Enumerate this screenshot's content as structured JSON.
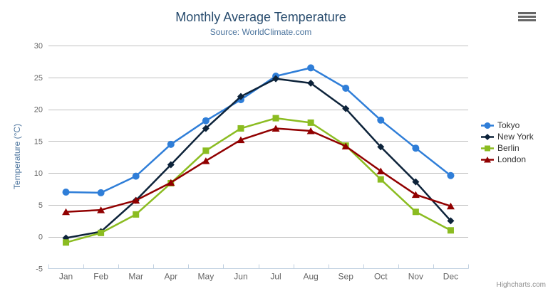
{
  "chart_data": {
    "type": "line",
    "title": "Monthly Average Temperature",
    "subtitle": "Source: WorldClimate.com",
    "xlabel": "",
    "ylabel": "Temperature (°C)",
    "categories": [
      "Jan",
      "Feb",
      "Mar",
      "Apr",
      "May",
      "Jun",
      "Jul",
      "Aug",
      "Sep",
      "Oct",
      "Nov",
      "Dec"
    ],
    "series": [
      {
        "name": "Tokyo",
        "color": "#2f7ed8",
        "marker": "circle",
        "values": [
          7.0,
          6.9,
          9.5,
          14.5,
          18.2,
          21.5,
          25.2,
          26.5,
          23.3,
          18.3,
          13.9,
          9.6
        ]
      },
      {
        "name": "New York",
        "color": "#0d233a",
        "marker": "diamond",
        "values": [
          -0.2,
          0.8,
          5.7,
          11.3,
          17.0,
          22.0,
          24.8,
          24.1,
          20.1,
          14.1,
          8.6,
          2.5
        ]
      },
      {
        "name": "Berlin",
        "color": "#8bbc21",
        "marker": "square",
        "values": [
          -0.9,
          0.6,
          3.5,
          8.4,
          13.5,
          17.0,
          18.6,
          17.9,
          14.3,
          9.0,
          3.9,
          1.0
        ]
      },
      {
        "name": "London",
        "color": "#910000",
        "marker": "triangle",
        "values": [
          3.9,
          4.2,
          5.7,
          8.5,
          11.9,
          15.2,
          17.0,
          16.6,
          14.2,
          10.3,
          6.6,
          4.8
        ]
      }
    ],
    "ylim": [
      -5,
      30
    ],
    "ytick_interval": 5,
    "yticks": [
      -5,
      0,
      5,
      10,
      15,
      20,
      25,
      30
    ],
    "grid": true,
    "legend_position": "right",
    "credits": "Highcharts.com"
  },
  "icons": {
    "menu": "hamburger-menu-icon"
  },
  "colors": {
    "title": "#274b6d",
    "subtitle": "#4d759e",
    "axis_title": "#4d759e",
    "axis_label": "#666666",
    "gridline": "#c0c0c0",
    "axis_line": "#c0d0e0",
    "legend_text": "#333333",
    "credits": "#909090",
    "menu_icon": "#666666",
    "background": "#ffffff"
  }
}
